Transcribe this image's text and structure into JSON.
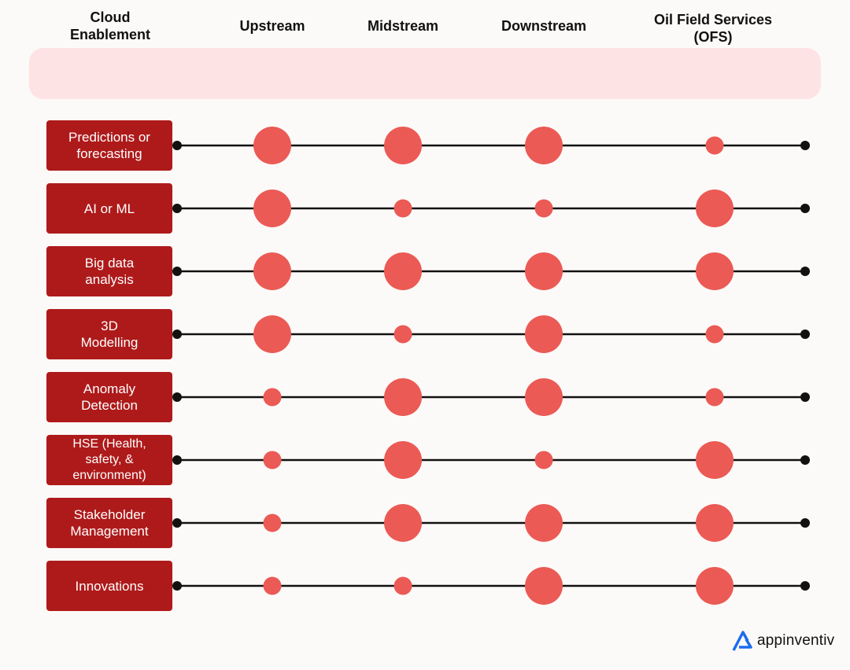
{
  "chart_data": {
    "type": "scatter",
    "x_categories": [
      "Upstream",
      "Midstream",
      "Downstream",
      "Oil Field Services (OFS)"
    ],
    "header_corner": "Cloud\nEnablement",
    "rows": [
      {
        "label": "Predictions or\nforecasting",
        "values": [
          3,
          3,
          3,
          1
        ]
      },
      {
        "label": "AI or ML",
        "values": [
          3,
          1,
          1,
          3
        ]
      },
      {
        "label": "Big data\nanalysis",
        "values": [
          3,
          3,
          3,
          3
        ]
      },
      {
        "label": "3D\nModelling",
        "values": [
          3,
          1,
          3,
          1
        ]
      },
      {
        "label": "Anomaly\nDetection",
        "values": [
          1,
          3,
          3,
          1
        ]
      },
      {
        "label": "HSE (Health,\nsafety, &\nenvironment)",
        "values": [
          1,
          3,
          1,
          3
        ]
      },
      {
        "label": "Stakeholder\nManagement",
        "values": [
          1,
          3,
          3,
          3
        ]
      },
      {
        "label": "Innovations",
        "values": [
          1,
          1,
          3,
          3
        ]
      }
    ],
    "value_meaning": "circle size: 3 = large, 1 = small",
    "colors": {
      "dot": "#eb5a55",
      "row_label_bg": "#ae1a1a",
      "header_bg": "#fde3e4",
      "line": "#111111"
    }
  },
  "branding": {
    "logo_text": "appinventiv",
    "logo_icon": "appinventiv-logo-icon"
  }
}
